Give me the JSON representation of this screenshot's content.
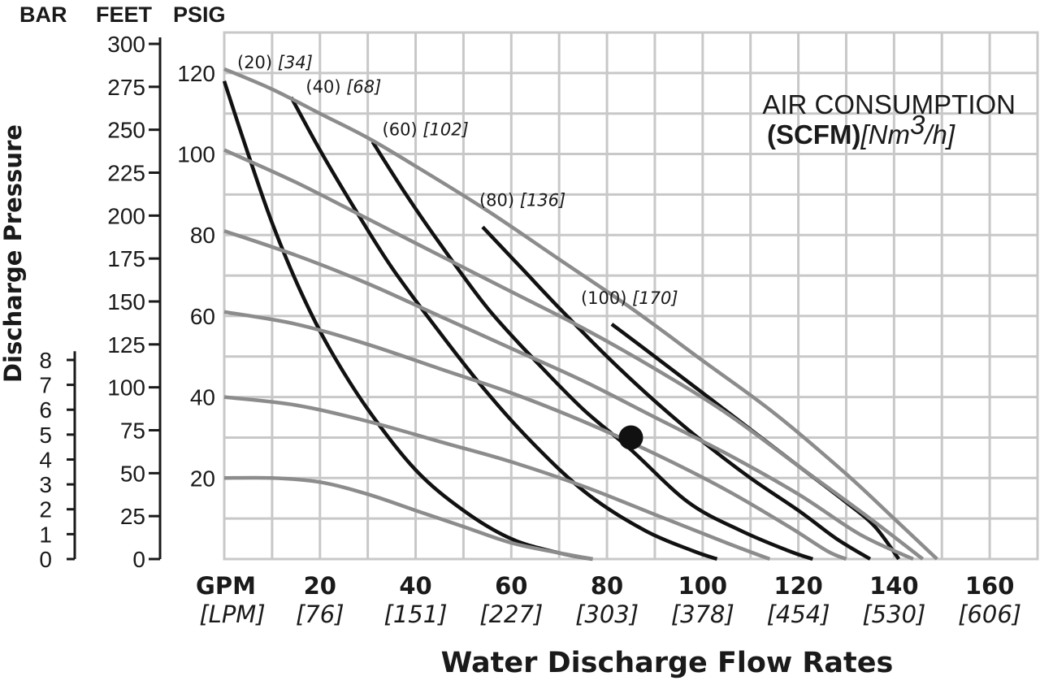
{
  "header": {
    "bar": "BAR",
    "feet": "FEET",
    "psig": "PSIG"
  },
  "y_title": "Discharge Pressure",
  "x_title": "Water Discharge Flow Rates",
  "legend": {
    "line1": "AIR CONSUMPTION",
    "bold": "(SCFM)",
    "italic_pre": "[Nm",
    "sup": "3",
    "italic_post": "/h]"
  },
  "chart_data": {
    "type": "line",
    "title": "AIR CONSUMPTION (SCFM)[Nm3/h]",
    "xlabel": "Water Discharge Flow Rates",
    "ylabel": "Discharge Pressure",
    "x_unit": "GPM",
    "x_unit_alt": "[LPM]",
    "xlim": [
      0,
      170
    ],
    "ylim_feet": [
      0,
      130
    ],
    "grid": true,
    "x_ticks": [
      {
        "gpm": "20",
        "lpm": "[76]"
      },
      {
        "gpm": "40",
        "lpm": "[151]"
      },
      {
        "gpm": "60",
        "lpm": "[227]"
      },
      {
        "gpm": "80",
        "lpm": "[303]"
      },
      {
        "gpm": "100",
        "lpm": "[378]"
      },
      {
        "gpm": "120",
        "lpm": "[454]"
      },
      {
        "gpm": "140",
        "lpm": "[530]"
      },
      {
        "gpm": "160",
        "lpm": "[606]"
      }
    ],
    "x_tick_values": [
      20,
      40,
      60,
      80,
      100,
      120,
      140,
      160
    ],
    "psig_ticks": [
      "0",
      "25",
      "50",
      "75",
      "100",
      "125",
      "150",
      "175",
      "200",
      "225",
      "250",
      "275",
      "300"
    ],
    "psig_tick_values": [
      0,
      25,
      50,
      75,
      100,
      125,
      150,
      175,
      200,
      225,
      250,
      275,
      300
    ],
    "bar_ticks": [
      "0",
      "1",
      "2",
      "3",
      "4",
      "5",
      "6",
      "7",
      "8"
    ],
    "bar_tick_values": [
      0,
      1,
      2,
      3,
      4,
      5,
      6,
      7,
      8
    ],
    "feet_ticks": [
      "20",
      "40",
      "60",
      "80",
      "100",
      "120"
    ],
    "feet_tick_values": [
      20,
      40,
      60,
      80,
      100,
      120
    ],
    "air_curves": [
      {
        "scfm": "(20)",
        "nm3h": "[34]",
        "points": [
          [
            0,
            118
          ],
          [
            5,
            100
          ],
          [
            10,
            83
          ],
          [
            16,
            66
          ],
          [
            22,
            52
          ],
          [
            30,
            37
          ],
          [
            40,
            22
          ],
          [
            50,
            12
          ],
          [
            60,
            5
          ],
          [
            70,
            1.5
          ],
          [
            77,
            0
          ]
        ]
      },
      {
        "scfm": "(40)",
        "nm3h": "[68]",
        "points": [
          [
            14,
            114
          ],
          [
            20,
            101
          ],
          [
            27,
            87
          ],
          [
            35,
            72
          ],
          [
            45,
            56
          ],
          [
            55,
            41
          ],
          [
            65,
            28
          ],
          [
            76,
            16
          ],
          [
            88,
            7
          ],
          [
            98,
            2
          ],
          [
            103,
            0
          ]
        ]
      },
      {
        "scfm": "(60)",
        "nm3h": "[102]",
        "points": [
          [
            31,
            103
          ],
          [
            38,
            90
          ],
          [
            45,
            78
          ],
          [
            55,
            62
          ],
          [
            65,
            49
          ],
          [
            75,
            37
          ],
          [
            85,
            27
          ],
          [
            97,
            14
          ],
          [
            108,
            7
          ],
          [
            118,
            2
          ],
          [
            123,
            0
          ]
        ]
      },
      {
        "scfm": "(80)",
        "nm3h": "[136]",
        "points": [
          [
            54,
            82
          ],
          [
            62,
            72
          ],
          [
            70,
            62
          ],
          [
            80,
            50
          ],
          [
            90,
            39
          ],
          [
            100,
            29
          ],
          [
            110,
            20
          ],
          [
            120,
            12
          ],
          [
            128,
            5
          ],
          [
            135,
            0
          ]
        ]
      },
      {
        "scfm": "(100)",
        "nm3h": "[170]",
        "points": [
          [
            81,
            58
          ],
          [
            90,
            50
          ],
          [
            100,
            41
          ],
          [
            110,
            32
          ],
          [
            120,
            23
          ],
          [
            130,
            14
          ],
          [
            136,
            8
          ],
          [
            141,
            0
          ]
        ]
      }
    ],
    "pressure_curves": [
      {
        "points": [
          [
            0,
            121
          ],
          [
            10,
            116
          ],
          [
            20,
            110
          ],
          [
            30,
            104
          ],
          [
            40,
            97
          ],
          [
            55,
            86
          ],
          [
            70,
            74
          ],
          [
            85,
            62
          ],
          [
            100,
            49
          ],
          [
            115,
            36
          ],
          [
            130,
            21
          ],
          [
            140,
            10
          ],
          [
            149,
            0
          ]
        ]
      },
      {
        "points": [
          [
            0,
            101
          ],
          [
            15,
            93
          ],
          [
            30,
            84
          ],
          [
            45,
            75
          ],
          [
            60,
            66
          ],
          [
            75,
            57
          ],
          [
            90,
            47
          ],
          [
            105,
            36
          ],
          [
            120,
            23
          ],
          [
            135,
            10
          ],
          [
            146,
            0
          ]
        ]
      },
      {
        "points": [
          [
            0,
            81
          ],
          [
            15,
            75
          ],
          [
            30,
            68
          ],
          [
            45,
            60
          ],
          [
            60,
            52
          ],
          [
            75,
            44
          ],
          [
            90,
            35
          ],
          [
            105,
            26
          ],
          [
            120,
            16
          ],
          [
            133,
            6
          ],
          [
            144,
            0
          ]
        ]
      },
      {
        "points": [
          [
            0,
            61
          ],
          [
            15,
            58
          ],
          [
            30,
            53
          ],
          [
            45,
            47
          ],
          [
            60,
            41
          ],
          [
            75,
            34
          ],
          [
            90,
            26
          ],
          [
            105,
            17
          ],
          [
            118,
            8
          ],
          [
            126,
            2
          ],
          [
            130,
            0
          ]
        ]
      },
      {
        "points": [
          [
            0,
            40
          ],
          [
            15,
            38
          ],
          [
            30,
            34
          ],
          [
            45,
            29
          ],
          [
            60,
            24
          ],
          [
            75,
            18
          ],
          [
            90,
            11
          ],
          [
            105,
            4
          ],
          [
            114,
            0
          ]
        ]
      },
      {
        "points": [
          [
            0,
            20
          ],
          [
            10,
            20
          ],
          [
            20,
            19
          ],
          [
            30,
            16
          ],
          [
            40,
            12
          ],
          [
            50,
            8
          ],
          [
            60,
            4
          ],
          [
            70,
            1.5
          ],
          [
            77,
            0
          ]
        ]
      }
    ],
    "marker": {
      "x": 85,
      "y": 30
    }
  }
}
